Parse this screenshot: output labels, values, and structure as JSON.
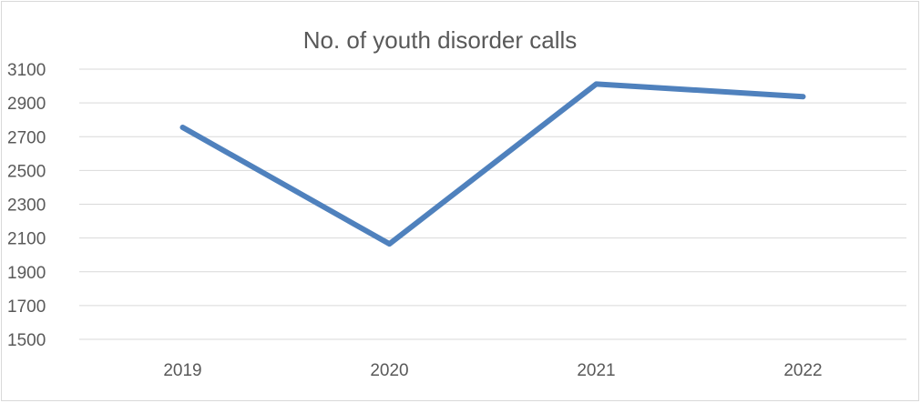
{
  "chart_data": {
    "type": "line",
    "title": "No. of youth disorder calls",
    "xlabel": "",
    "ylabel": "",
    "categories": [
      "2019",
      "2020",
      "2021",
      "2022"
    ],
    "series": [
      {
        "values": [
          2755,
          2065,
          3012,
          2937
        ]
      }
    ],
    "ylim": [
      1500,
      3100
    ],
    "yticks": [
      1500,
      1700,
      1900,
      2100,
      2300,
      2500,
      2700,
      2900,
      3100
    ],
    "grid": true,
    "legend": "none",
    "line_color": "#4f81bd",
    "grid_color": "#d9d9d9",
    "text_color": "#595959"
  }
}
